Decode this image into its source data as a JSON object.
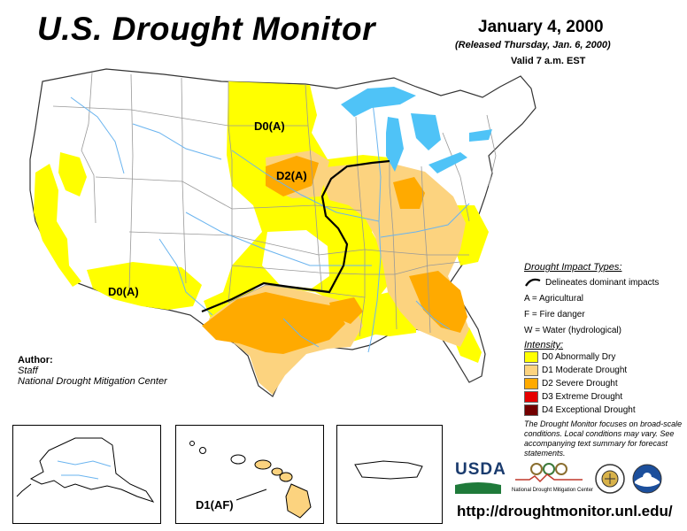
{
  "header": {
    "title": "U.S. Drought Monitor",
    "date": "January 4, 2000",
    "released": "(Released Thursday, Jan. 6, 2000)",
    "valid": "Valid 7 a.m. EST"
  },
  "map_labels": {
    "north_plains": "D0(A)",
    "midwest": "D2(A)",
    "southwest": "D0(A)",
    "hawaii": "D1(AF)"
  },
  "author": {
    "heading": "Author:",
    "name": "Staff",
    "org": "National Drought Mitigation Center"
  },
  "legend": {
    "impact_heading": "Drought Impact Types:",
    "delineates": "Delineates dominant impacts",
    "agricultural": "A = Agricultural",
    "fire": "F = Fire danger",
    "water": "W = Water (hydrological)",
    "intensity_heading": "Intensity:",
    "levels": [
      {
        "label": "D0 Abnormally Dry",
        "color": "#ffff00"
      },
      {
        "label": "D1 Moderate Drought",
        "color": "#fcd37f"
      },
      {
        "label": "D2 Severe Drought",
        "color": "#ffaa00"
      },
      {
        "label": "D3 Extreme Drought",
        "color": "#e60000"
      },
      {
        "label": "D4 Exceptional Drought",
        "color": "#730000"
      }
    ]
  },
  "note": "The Drought Monitor focuses on broad-scale conditions. Local conditions may vary. See accompanying text summary for forecast statements.",
  "logos": {
    "usda": "USDA",
    "ndmc": "National Drought Mitigation Center"
  },
  "url": "http://droughtmonitor.unl.edu/",
  "colors": {
    "water": "#4fc3f7",
    "river": "#6ab4ef",
    "border": "#999999",
    "d0": "#ffff00",
    "d1": "#fcd37f",
    "d2": "#ffaa00"
  }
}
